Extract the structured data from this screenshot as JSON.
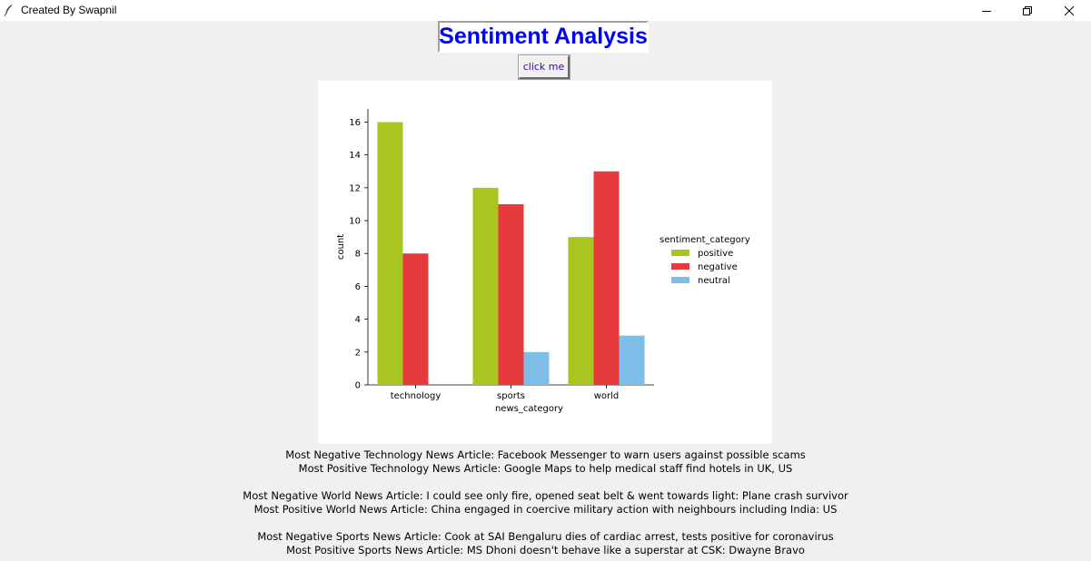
{
  "window": {
    "title": "Created By Swapnil",
    "icon": "feather-icon",
    "controls": [
      "minimize-icon",
      "restore-icon",
      "close-icon"
    ]
  },
  "heading": "Sentiment Analysis",
  "button": {
    "label": "click me"
  },
  "colors": {
    "heading": "#0000ff",
    "positive": "#a9c51f",
    "negative": "#e63a3c",
    "neutral": "#7dbde8"
  },
  "chart_data": {
    "type": "bar",
    "categories": [
      "technology",
      "sports",
      "world"
    ],
    "series": [
      {
        "name": "positive",
        "values": [
          16,
          12,
          9
        ]
      },
      {
        "name": "negative",
        "values": [
          8,
          11,
          13
        ]
      },
      {
        "name": "neutral",
        "values": [
          0,
          2,
          3
        ]
      }
    ],
    "xlabel": "news_category",
    "ylabel": "count",
    "ylim": [
      0,
      16.8
    ],
    "yticks": [
      0,
      2,
      4,
      6,
      8,
      10,
      12,
      14,
      16
    ],
    "legend_title": "sentiment_category",
    "legend_position": "right",
    "grid": false
  },
  "summary": [
    [
      "Most Negative Technology News Article: Facebook Messenger to warn users against possible scams",
      "Most Positive Technology News Article: Google Maps to help medical staff find hotels in UK, US"
    ],
    [
      "Most Negative World News Article: I could see only fire, opened seat belt & went towards light: Plane crash survivor",
      "Most Positive World News Article: China engaged in coercive military action with neighbours including India: US"
    ],
    [
      "Most Negative Sports News Article: Cook at SAI Bengaluru dies of cardiac arrest, tests positive for coronavirus",
      "Most Positive Sports News Article: MS Dhoni doesn't behave like a superstar at CSK: Dwayne Bravo"
    ]
  ]
}
